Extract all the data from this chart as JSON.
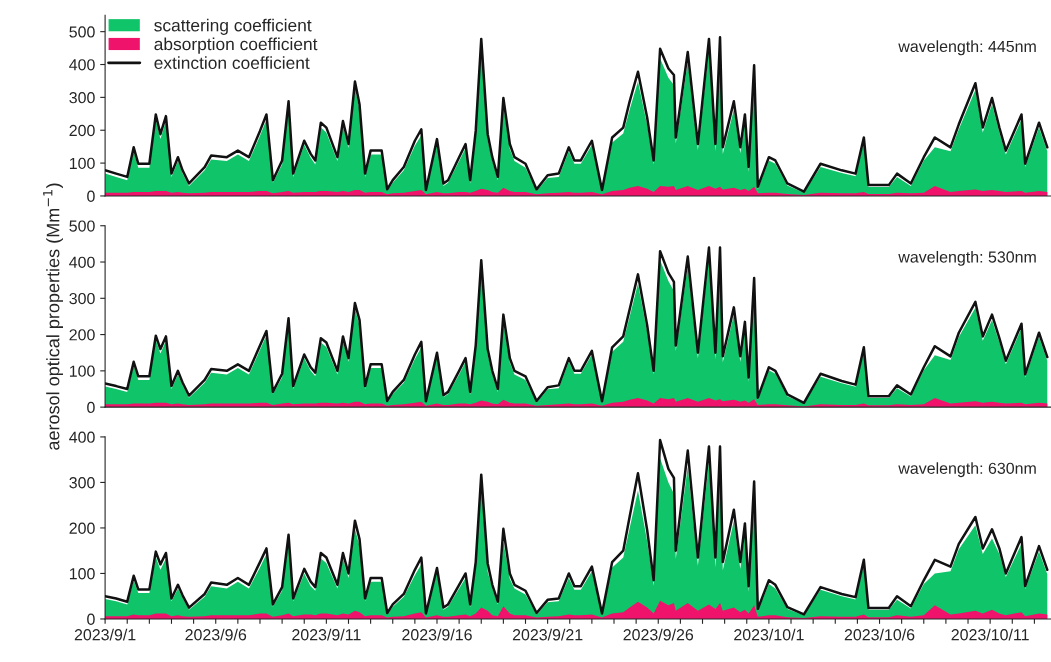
{
  "chart_data": [
    {
      "type": "area",
      "ylim": [
        0,
        550
      ],
      "yticks": [
        0,
        100,
        200,
        300,
        400,
        500
      ],
      "xlim": [
        "2023-09-01T00:00",
        "2023-10-13T18:00"
      ],
      "tick_labels": "y",
      "legend": "top left",
      "annotations": [
        "wavelength: 445nm"
      ],
      "x": [
        "2023-09-01T00:00",
        "2023-09-01T12:00",
        "2023-09-02T00:00",
        "2023-09-02T07:00",
        "2023-09-02T12:00",
        "2023-09-03T00:00",
        "2023-09-03T07:00",
        "2023-09-03T12:00",
        "2023-09-03T18:00",
        "2023-09-04T00:00",
        "2023-09-04T07:00",
        "2023-09-04T12:00",
        "2023-09-04T19:00",
        "2023-09-05T12:00",
        "2023-09-05T19:00",
        "2023-09-06T12:00",
        "2023-09-07T00:00",
        "2023-09-07T12:00",
        "2023-09-08T00:00",
        "2023-09-08T07:00",
        "2023-09-08T14:00",
        "2023-09-09T00:00",
        "2023-09-09T07:00",
        "2023-09-09T12:00",
        "2023-09-10T00:00",
        "2023-09-10T07:00",
        "2023-09-10T12:00",
        "2023-09-10T18:00",
        "2023-09-11T00:00",
        "2023-09-11T12:00",
        "2023-09-11T18:00",
        "2023-09-12T00:00",
        "2023-09-12T07:00",
        "2023-09-12T12:00",
        "2023-09-12T18:00",
        "2023-09-13T00:00",
        "2023-09-13T12:00",
        "2023-09-13T18:00",
        "2023-09-14T00:00",
        "2023-09-14T12:00",
        "2023-09-15T00:00",
        "2023-09-15T07:00",
        "2023-09-15T12:00",
        "2023-09-16T00:00",
        "2023-09-16T07:00",
        "2023-09-16T12:00",
        "2023-09-17T00:00",
        "2023-09-17T07:00",
        "2023-09-17T12:00",
        "2023-09-17T18:00",
        "2023-09-18T00:00",
        "2023-09-18T07:00",
        "2023-09-18T12:00",
        "2023-09-18T18:00",
        "2023-09-19T00:00",
        "2023-09-19T07:00",
        "2023-09-19T12:00",
        "2023-09-20T00:00",
        "2023-09-20T12:00",
        "2023-09-21T00:00",
        "2023-09-21T12:00",
        "2023-09-21T23:00",
        "2023-09-22T05:00",
        "2023-09-22T12:00",
        "2023-09-23T00:00",
        "2023-09-23T11:00",
        "2023-09-23T22:00",
        "2023-09-24T10:00",
        "2023-09-24T17:00",
        "2023-09-25T02:00",
        "2023-09-25T12:00",
        "2023-09-25T19:00",
        "2023-09-26T02:00",
        "2023-09-26T11:00",
        "2023-09-26T17:00",
        "2023-09-26T19:00",
        "2023-09-27T08:00",
        "2023-09-27T19:00",
        "2023-09-28T07:00",
        "2023-09-28T14:00",
        "2023-09-28T19:00",
        "2023-09-28T22:00",
        "2023-09-29T10:00",
        "2023-09-29T17:00",
        "2023-09-29T22:00",
        "2023-09-30T02:00",
        "2023-09-30T08:00",
        "2023-09-30T12:00",
        "2023-10-01T00:00",
        "2023-10-01T07:00",
        "2023-10-01T20:00",
        "2023-10-02T14:00",
        "2023-10-03T08:00",
        "2023-10-04T07:00",
        "2023-10-04T22:00",
        "2023-10-05T07:00",
        "2023-10-05T12:00",
        "2023-10-06T10:00",
        "2023-10-06T19:00",
        "2023-10-07T10:00",
        "2023-10-08T00:00",
        "2023-10-08T12:00",
        "2023-10-09T05:00",
        "2023-10-09T14:00",
        "2023-10-10T08:00",
        "2023-10-10T16:00",
        "2023-10-11T02:00",
        "2023-10-11T10:00",
        "2023-10-11T17:00",
        "2023-10-12T10:00",
        "2023-10-12T14:00",
        "2023-10-13T05:00",
        "2023-10-13T14:00"
      ],
      "series": [
        {
          "name": "scattering coefficient",
          "color": "#10c46a",
          "values": [
            68,
            58,
            48,
            136,
            86,
            86,
            233,
            173,
            228,
            58,
            106,
            68,
            30,
            78,
            111,
            106,
            126,
            106,
            183,
            233,
            40,
            96,
            273,
            58,
            156,
            116,
            96,
            208,
            193,
            106,
            213,
            146,
            330,
            260,
            58,
            126,
            126,
            15,
            40,
            78,
            153,
            185,
            13,
            161,
            30,
            40,
            106,
            146,
            38,
            183,
            456,
            170,
            106,
            48,
            273,
            143,
            106,
            86,
            15,
            55,
            58,
            136,
            98,
            98,
            156,
            13,
            163,
            190,
            263,
            348,
            216,
            96,
            418,
            360,
            338,
            160,
            408,
            140,
            448,
            136,
            455,
            128,
            263,
            130,
            226,
            73,
            370,
            20,
            108,
            98,
            32,
            10,
            88,
            70,
            60,
            166,
            27,
            27,
            58,
            30,
            108,
            148,
            136,
            203,
            323,
            193,
            280,
            193,
            126,
            233,
            88,
            208,
            136
          ]
        },
        {
          "name": "absorption coefficient",
          "color": "#f0136c",
          "values": [
            10,
            10,
            10,
            12,
            12,
            12,
            15,
            15,
            15,
            10,
            12,
            10,
            8,
            10,
            12,
            12,
            12,
            12,
            15,
            15,
            8,
            12,
            15,
            10,
            12,
            12,
            12,
            15,
            15,
            12,
            15,
            12,
            18,
            18,
            10,
            12,
            12,
            5,
            8,
            10,
            15,
            18,
            5,
            12,
            8,
            8,
            12,
            12,
            10,
            15,
            22,
            18,
            12,
            10,
            25,
            15,
            12,
            12,
            5,
            8,
            10,
            12,
            10,
            10,
            12,
            5,
            15,
            18,
            25,
            30,
            22,
            12,
            30,
            28,
            30,
            18,
            30,
            18,
            30,
            22,
            28,
            20,
            25,
            18,
            22,
            15,
            28,
            8,
            10,
            10,
            6,
            3,
            10,
            8,
            8,
            12,
            6,
            6,
            10,
            8,
            10,
            30,
            12,
            15,
            20,
            15,
            18,
            15,
            12,
            15,
            10,
            15,
            12
          ]
        },
        {
          "name": "extinction coefficient",
          "type": "line",
          "color": "#111111",
          "values": [
            78,
            68,
            58,
            148,
            98,
            98,
            248,
            188,
            243,
            68,
            118,
            78,
            38,
            88,
            123,
            118,
            138,
            118,
            198,
            248,
            48,
            108,
            288,
            68,
            168,
            128,
            108,
            223,
            208,
            118,
            228,
            158,
            348,
            278,
            68,
            138,
            138,
            20,
            48,
            88,
            168,
            203,
            18,
            173,
            38,
            48,
            118,
            158,
            48,
            198,
            478,
            188,
            118,
            58,
            298,
            158,
            118,
            98,
            20,
            63,
            68,
            148,
            108,
            108,
            168,
            18,
            178,
            208,
            288,
            378,
            238,
            108,
            448,
            388,
            368,
            178,
            438,
            158,
            478,
            158,
            483,
            148,
            288,
            148,
            248,
            88,
            398,
            28,
            118,
            108,
            38,
            13,
            98,
            78,
            68,
            178,
            33,
            33,
            68,
            38,
            118,
            178,
            148,
            218,
            343,
            208,
            298,
            208,
            138,
            248,
            98,
            223,
            148
          ]
        }
      ]
    },
    {
      "type": "area",
      "ylim": [
        0,
        500
      ],
      "yticks": [
        0,
        100,
        200,
        300,
        400,
        500
      ],
      "xlim": [
        "2023-09-01T00:00",
        "2023-10-13T18:00"
      ],
      "tick_labels": "y",
      "ylabel": "aerosol optical properties (Mm$^{−1}$)",
      "annotations": [
        "wavelength: 530nm"
      ],
      "x": [
        "2023-09-01T00:00",
        "2023-09-01T12:00",
        "2023-09-02T00:00",
        "2023-09-02T07:00",
        "2023-09-02T12:00",
        "2023-09-03T00:00",
        "2023-09-03T07:00",
        "2023-09-03T12:00",
        "2023-09-03T18:00",
        "2023-09-04T00:00",
        "2023-09-04T07:00",
        "2023-09-04T12:00",
        "2023-09-04T19:00",
        "2023-09-05T12:00",
        "2023-09-05T19:00",
        "2023-09-06T12:00",
        "2023-09-07T00:00",
        "2023-09-07T12:00",
        "2023-09-08T00:00",
        "2023-09-08T07:00",
        "2023-09-08T14:00",
        "2023-09-09T00:00",
        "2023-09-09T07:00",
        "2023-09-09T12:00",
        "2023-09-10T00:00",
        "2023-09-10T07:00",
        "2023-09-10T12:00",
        "2023-09-10T18:00",
        "2023-09-11T00:00",
        "2023-09-11T12:00",
        "2023-09-11T18:00",
        "2023-09-12T00:00",
        "2023-09-12T07:00",
        "2023-09-12T12:00",
        "2023-09-12T18:00",
        "2023-09-13T00:00",
        "2023-09-13T12:00",
        "2023-09-13T18:00",
        "2023-09-14T00:00",
        "2023-09-14T12:00",
        "2023-09-15T00:00",
        "2023-09-15T07:00",
        "2023-09-15T12:00",
        "2023-09-16T00:00",
        "2023-09-16T07:00",
        "2023-09-16T12:00",
        "2023-09-17T00:00",
        "2023-09-17T07:00",
        "2023-09-17T12:00",
        "2023-09-17T18:00",
        "2023-09-18T00:00",
        "2023-09-18T07:00",
        "2023-09-18T12:00",
        "2023-09-18T18:00",
        "2023-09-19T00:00",
        "2023-09-19T07:00",
        "2023-09-19T12:00",
        "2023-09-20T00:00",
        "2023-09-20T12:00",
        "2023-09-21T00:00",
        "2023-09-21T12:00",
        "2023-09-21T23:00",
        "2023-09-22T05:00",
        "2023-09-22T12:00",
        "2023-09-23T00:00",
        "2023-09-23T11:00",
        "2023-09-23T22:00",
        "2023-09-24T10:00",
        "2023-09-24T17:00",
        "2023-09-25T02:00",
        "2023-09-25T12:00",
        "2023-09-25T19:00",
        "2023-09-26T02:00",
        "2023-09-26T11:00",
        "2023-09-26T17:00",
        "2023-09-26T19:00",
        "2023-09-27T08:00",
        "2023-09-27T19:00",
        "2023-09-28T07:00",
        "2023-09-28T14:00",
        "2023-09-28T19:00",
        "2023-09-28T22:00",
        "2023-09-29T10:00",
        "2023-09-29T17:00",
        "2023-09-29T22:00",
        "2023-09-30T02:00",
        "2023-09-30T08:00",
        "2023-09-30T12:00",
        "2023-10-01T00:00",
        "2023-10-01T07:00",
        "2023-10-01T20:00",
        "2023-10-02T14:00",
        "2023-10-03T08:00",
        "2023-10-04T07:00",
        "2023-10-04T22:00",
        "2023-10-05T07:00",
        "2023-10-05T12:00",
        "2023-10-06T10:00",
        "2023-10-06T19:00",
        "2023-10-07T10:00",
        "2023-10-08T00:00",
        "2023-10-08T12:00",
        "2023-10-09T05:00",
        "2023-10-09T14:00",
        "2023-10-10T08:00",
        "2023-10-10T16:00",
        "2023-10-11T02:00",
        "2023-10-11T10:00",
        "2023-10-11T17:00",
        "2023-10-12T10:00",
        "2023-10-12T14:00",
        "2023-10-13T05:00",
        "2023-10-13T14:00"
      ],
      "series": [
        {
          "color": "#10c46a",
          "values": [
            57,
            50,
            42,
            115,
            75,
            75,
            185,
            148,
            183,
            50,
            90,
            60,
            26,
            67,
            95,
            90,
            108,
            90,
            158,
            198,
            36,
            82,
            233,
            50,
            135,
            100,
            85,
            178,
            166,
            90,
            183,
            125,
            272,
            225,
            50,
            108,
            108,
            13,
            36,
            67,
            133,
            165,
            12,
            140,
            27,
            36,
            90,
            125,
            34,
            158,
            387,
            145,
            90,
            42,
            235,
            123,
            90,
            75,
            13,
            49,
            52,
            125,
            92,
            92,
            145,
            12,
            153,
            180,
            250,
            341,
            207,
            90,
            405,
            348,
            320,
            155,
            390,
            135,
            415,
            132,
            418,
            124,
            255,
            125,
            217,
            70,
            334,
            20,
            102,
            92,
            30,
            10,
            84,
            66,
            56,
            155,
            25,
            25,
            52,
            29,
            102,
            143,
            130,
            193,
            274,
            183,
            240,
            178,
            118,
            218,
            82,
            193,
            128
          ]
        },
        {
          "color": "#f0136c",
          "values": [
            8,
            8,
            8,
            10,
            10,
            10,
            12,
            12,
            12,
            8,
            10,
            8,
            6,
            8,
            10,
            10,
            10,
            10,
            12,
            12,
            6,
            10,
            12,
            8,
            10,
            10,
            10,
            12,
            12,
            10,
            12,
            10,
            15,
            15,
            8,
            10,
            10,
            4,
            6,
            8,
            12,
            15,
            4,
            10,
            6,
            6,
            10,
            10,
            8,
            12,
            18,
            15,
            10,
            8,
            20,
            12,
            10,
            10,
            4,
            6,
            8,
            10,
            8,
            8,
            10,
            4,
            12,
            15,
            20,
            25,
            18,
            10,
            25,
            22,
            25,
            15,
            25,
            15,
            25,
            18,
            22,
            16,
            20,
            15,
            18,
            12,
            22,
            6,
            8,
            8,
            5,
            2,
            8,
            6,
            6,
            10,
            5,
            5,
            8,
            6,
            8,
            25,
            10,
            12,
            16,
            12,
            15,
            12,
            10,
            12,
            8,
            12,
            10
          ]
        },
        {
          "type": "line",
          "color": "#111111",
          "values": [
            65,
            58,
            50,
            125,
            85,
            85,
            197,
            160,
            195,
            58,
            100,
            68,
            32,
            75,
            105,
            100,
            118,
            100,
            170,
            210,
            42,
            92,
            245,
            58,
            145,
            110,
            95,
            190,
            178,
            100,
            195,
            135,
            287,
            240,
            58,
            118,
            118,
            17,
            42,
            75,
            145,
            180,
            16,
            150,
            33,
            42,
            100,
            135,
            42,
            170,
            405,
            160,
            100,
            50,
            255,
            135,
            100,
            85,
            17,
            55,
            60,
            135,
            100,
            100,
            155,
            16,
            165,
            195,
            270,
            366,
            225,
            100,
            430,
            370,
            345,
            170,
            415,
            150,
            440,
            150,
            440,
            140,
            275,
            140,
            235,
            82,
            356,
            26,
            110,
            100,
            35,
            12,
            92,
            72,
            62,
            165,
            30,
            30,
            60,
            35,
            110,
            168,
            140,
            205,
            290,
            195,
            255,
            190,
            128,
            230,
            90,
            205,
            138
          ]
        }
      ]
    },
    {
      "type": "area",
      "ylim": [
        0,
        400
      ],
      "yticks": [
        0,
        100,
        200,
        300,
        400
      ],
      "xlim": [
        "2023-09-01T00:00",
        "2023-10-13T18:00"
      ],
      "annotations": [
        "wavelength: 630nm"
      ],
      "xticks": [
        {
          "value": "2023-09-01",
          "label": "2023/9/1"
        },
        {
          "value": "2023-09-02",
          "label": null
        },
        {
          "value": "2023-09-03",
          "label": null
        },
        {
          "value": "2023-09-04",
          "label": null
        },
        {
          "value": "2023-09-05",
          "label": null
        },
        {
          "value": "2023-09-06",
          "label": "2023/9/6"
        },
        {
          "value": "2023-09-07",
          "label": null
        },
        {
          "value": "2023-09-08",
          "label": null
        },
        {
          "value": "2023-09-09",
          "label": null
        },
        {
          "value": "2023-09-10",
          "label": null
        },
        {
          "value": "2023-09-11",
          "label": "2023/9/11"
        },
        {
          "value": "2023-09-12",
          "label": null
        },
        {
          "value": "2023-09-13",
          "label": null
        },
        {
          "value": "2023-09-14",
          "label": null
        },
        {
          "value": "2023-09-15",
          "label": null
        },
        {
          "value": "2023-09-16",
          "label": "2023/9/16"
        },
        {
          "value": "2023-09-17",
          "label": null
        },
        {
          "value": "2023-09-18",
          "label": null
        },
        {
          "value": "2023-09-19",
          "label": null
        },
        {
          "value": "2023-09-20",
          "label": null
        },
        {
          "value": "2023-09-21",
          "label": "2023/9/21"
        },
        {
          "value": "2023-09-22",
          "label": null
        },
        {
          "value": "2023-09-23",
          "label": null
        },
        {
          "value": "2023-09-24",
          "label": null
        },
        {
          "value": "2023-09-25",
          "label": null
        },
        {
          "value": "2023-09-26",
          "label": "2023/9/26"
        },
        {
          "value": "2023-09-27",
          "label": null
        },
        {
          "value": "2023-09-28",
          "label": null
        },
        {
          "value": "2023-09-29",
          "label": null
        },
        {
          "value": "2023-09-30",
          "label": null
        },
        {
          "value": "2023-10-01",
          "label": "2023/10/1"
        },
        {
          "value": "2023-10-02",
          "label": null
        },
        {
          "value": "2023-10-03",
          "label": null
        },
        {
          "value": "2023-10-04",
          "label": null
        },
        {
          "value": "2023-10-05",
          "label": null
        },
        {
          "value": "2023-10-06",
          "label": "2023/10/6"
        },
        {
          "value": "2023-10-07",
          "label": null
        },
        {
          "value": "2023-10-08",
          "label": null
        },
        {
          "value": "2023-10-09",
          "label": null
        },
        {
          "value": "2023-10-10",
          "label": null
        },
        {
          "value": "2023-10-11",
          "label": "2023/10/11"
        },
        {
          "value": "2023-10-12",
          "label": null
        },
        {
          "value": "2023-10-13",
          "label": null
        }
      ],
      "x": [
        "2023-09-01T00:00",
        "2023-09-01T12:00",
        "2023-09-02T00:00",
        "2023-09-02T07:00",
        "2023-09-02T12:00",
        "2023-09-03T00:00",
        "2023-09-03T07:00",
        "2023-09-03T12:00",
        "2023-09-03T18:00",
        "2023-09-04T00:00",
        "2023-09-04T07:00",
        "2023-09-04T12:00",
        "2023-09-04T19:00",
        "2023-09-05T12:00",
        "2023-09-05T19:00",
        "2023-09-06T12:00",
        "2023-09-07T00:00",
        "2023-09-07T12:00",
        "2023-09-08T00:00",
        "2023-09-08T07:00",
        "2023-09-08T14:00",
        "2023-09-09T00:00",
        "2023-09-09T07:00",
        "2023-09-09T12:00",
        "2023-09-10T00:00",
        "2023-09-10T07:00",
        "2023-09-10T12:00",
        "2023-09-10T18:00",
        "2023-09-11T00:00",
        "2023-09-11T12:00",
        "2023-09-11T18:00",
        "2023-09-12T00:00",
        "2023-09-12T07:00",
        "2023-09-12T12:00",
        "2023-09-12T18:00",
        "2023-09-13T00:00",
        "2023-09-13T12:00",
        "2023-09-13T18:00",
        "2023-09-14T00:00",
        "2023-09-14T12:00",
        "2023-09-15T00:00",
        "2023-09-15T07:00",
        "2023-09-15T12:00",
        "2023-09-16T00:00",
        "2023-09-16T07:00",
        "2023-09-16T12:00",
        "2023-09-17T00:00",
        "2023-09-17T07:00",
        "2023-09-17T12:00",
        "2023-09-17T18:00",
        "2023-09-18T00:00",
        "2023-09-18T07:00",
        "2023-09-18T12:00",
        "2023-09-18T18:00",
        "2023-09-19T00:00",
        "2023-09-19T07:00",
        "2023-09-19T12:00",
        "2023-09-20T00:00",
        "2023-09-20T12:00",
        "2023-09-21T00:00",
        "2023-09-21T12:00",
        "2023-09-21T23:00",
        "2023-09-22T05:00",
        "2023-09-22T12:00",
        "2023-09-23T00:00",
        "2023-09-23T11:00",
        "2023-09-23T22:00",
        "2023-09-24T10:00",
        "2023-09-24T17:00",
        "2023-09-25T02:00",
        "2023-09-25T12:00",
        "2023-09-25T19:00",
        "2023-09-26T02:00",
        "2023-09-26T11:00",
        "2023-09-26T17:00",
        "2023-09-26T19:00",
        "2023-09-27T08:00",
        "2023-09-27T19:00",
        "2023-09-28T07:00",
        "2023-09-28T14:00",
        "2023-09-28T19:00",
        "2023-09-28T22:00",
        "2023-09-29T10:00",
        "2023-09-29T17:00",
        "2023-09-29T22:00",
        "2023-09-30T02:00",
        "2023-09-30T08:00",
        "2023-09-30T12:00",
        "2023-10-01T00:00",
        "2023-10-01T07:00",
        "2023-10-01T20:00",
        "2023-10-02T14:00",
        "2023-10-03T08:00",
        "2023-10-04T07:00",
        "2023-10-04T22:00",
        "2023-10-05T07:00",
        "2023-10-05T12:00",
        "2023-10-06T10:00",
        "2023-10-06T19:00",
        "2023-10-07T10:00",
        "2023-10-08T00:00",
        "2023-10-08T12:00",
        "2023-10-09T05:00",
        "2023-10-09T14:00",
        "2023-10-10T08:00",
        "2023-10-10T16:00",
        "2023-10-11T02:00",
        "2023-10-11T10:00",
        "2023-10-11T17:00",
        "2023-10-12T10:00",
        "2023-10-12T14:00",
        "2023-10-13T05:00",
        "2023-10-13T14:00"
      ],
      "series": [
        {
          "color": "#10c46a",
          "values": [
            44,
            39,
            32,
            85,
            57,
            57,
            136,
            108,
            133,
            39,
            67,
            46,
            20,
            49,
            72,
            67,
            82,
            67,
            113,
            143,
            27,
            62,
            173,
            39,
            100,
            72,
            62,
            133,
            123,
            67,
            133,
            90,
            198,
            160,
            39,
            82,
            82,
            10,
            27,
            49,
            96,
            120,
            9,
            104,
            20,
            27,
            67,
            90,
            26,
            113,
            292,
            104,
            67,
            32,
            170,
            88,
            67,
            54,
            10,
            37,
            39,
            90,
            64,
            64,
            105,
            9,
            113,
            135,
            200,
            282,
            170,
            73,
            353,
            300,
            275,
            132,
            335,
            117,
            347,
            113,
            344,
            107,
            215,
            110,
            190,
            60,
            272,
            17,
            77,
            67,
            22,
            8,
            64,
            50,
            43,
            120,
            20,
            20,
            42,
            23,
            77,
            100,
            105,
            153,
            206,
            143,
            177,
            143,
            92,
            165,
            66,
            148,
            98
          ]
        },
        {
          "color": "#f0136c",
          "values": [
            6,
            6,
            6,
            10,
            8,
            8,
            12,
            12,
            12,
            6,
            8,
            6,
            5,
            6,
            8,
            8,
            8,
            8,
            12,
            12,
            5,
            8,
            12,
            6,
            10,
            10,
            8,
            12,
            12,
            8,
            12,
            10,
            18,
            15,
            6,
            8,
            8,
            3,
            5,
            6,
            12,
            15,
            3,
            8,
            5,
            5,
            8,
            10,
            6,
            12,
            25,
            18,
            8,
            6,
            28,
            12,
            8,
            8,
            3,
            5,
            6,
            10,
            8,
            8,
            10,
            3,
            12,
            15,
            25,
            38,
            25,
            12,
            40,
            30,
            35,
            18,
            35,
            18,
            32,
            22,
            35,
            18,
            25,
            15,
            20,
            12,
            30,
            5,
            8,
            8,
            4,
            2,
            6,
            5,
            5,
            10,
            4,
            4,
            8,
            5,
            8,
            30,
            10,
            12,
            18,
            12,
            20,
            12,
            8,
            15,
            6,
            12,
            10
          ]
        },
        {
          "type": "line",
          "color": "#111111",
          "values": [
            50,
            45,
            38,
            95,
            65,
            65,
            148,
            120,
            145,
            45,
            75,
            52,
            25,
            55,
            80,
            75,
            90,
            75,
            125,
            155,
            32,
            70,
            185,
            45,
            110,
            82,
            70,
            145,
            135,
            75,
            145,
            100,
            216,
            175,
            45,
            90,
            90,
            13,
            32,
            55,
            108,
            135,
            12,
            112,
            25,
            32,
            75,
            100,
            32,
            125,
            317,
            122,
            75,
            38,
            198,
            100,
            75,
            62,
            13,
            42,
            45,
            100,
            72,
            72,
            115,
            12,
            125,
            150,
            225,
            320,
            195,
            85,
            393,
            330,
            310,
            150,
            370,
            135,
            379,
            135,
            379,
            125,
            240,
            125,
            210,
            72,
            302,
            22,
            85,
            75,
            26,
            10,
            70,
            55,
            48,
            130,
            24,
            24,
            50,
            28,
            85,
            130,
            115,
            165,
            224,
            155,
            197,
            155,
            100,
            180,
            72,
            160,
            108
          ]
        }
      ]
    }
  ]
}
